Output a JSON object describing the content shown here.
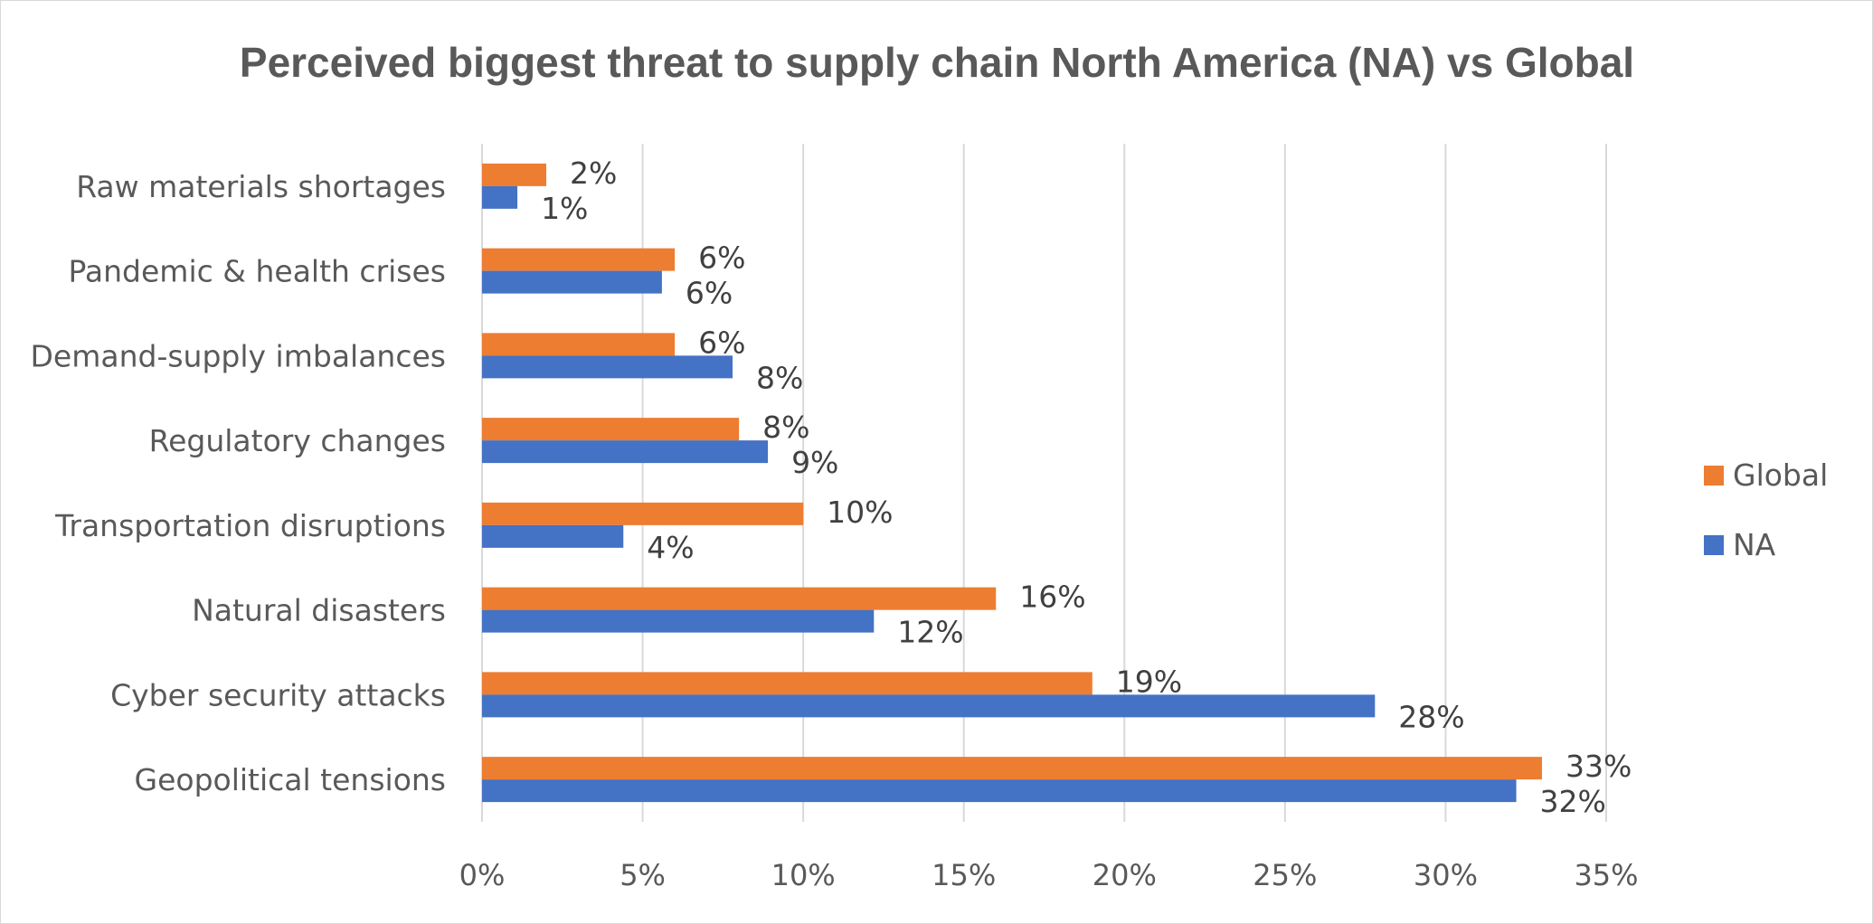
{
  "chart_data": {
    "type": "bar",
    "orientation": "horizontal",
    "title": "Perceived biggest threat to supply chain North America (NA) vs Global",
    "categories": [
      "Raw materials shortages",
      "Pandemic & health crises",
      "Demand-supply imbalances",
      "Regulatory changes",
      "Transportation disruptions",
      "Natural disasters",
      "Cyber security attacks",
      "Geopolitical tensions"
    ],
    "series": [
      {
        "name": "Global",
        "color": "#ED7D31",
        "values": [
          2,
          6,
          6,
          8,
          10,
          16,
          19,
          33
        ],
        "labels": [
          "2%",
          "6%",
          "6%",
          "8%",
          "10%",
          "16%",
          "19%",
          "33%"
        ]
      },
      {
        "name": "NA",
        "color": "#4472C4",
        "values": [
          1.1,
          5.6,
          7.8,
          8.9,
          4.4,
          12.2,
          27.8,
          32.2
        ],
        "labels": [
          "1%",
          "6%",
          "8%",
          "9%",
          "4%",
          "12%",
          "28%",
          "32%"
        ]
      }
    ],
    "xlim": [
      0,
      35
    ],
    "x_ticks": [
      "0%",
      "5%",
      "10%",
      "15%",
      "20%",
      "25%",
      "30%",
      "35%"
    ],
    "grid": true,
    "legend_position": "right"
  }
}
